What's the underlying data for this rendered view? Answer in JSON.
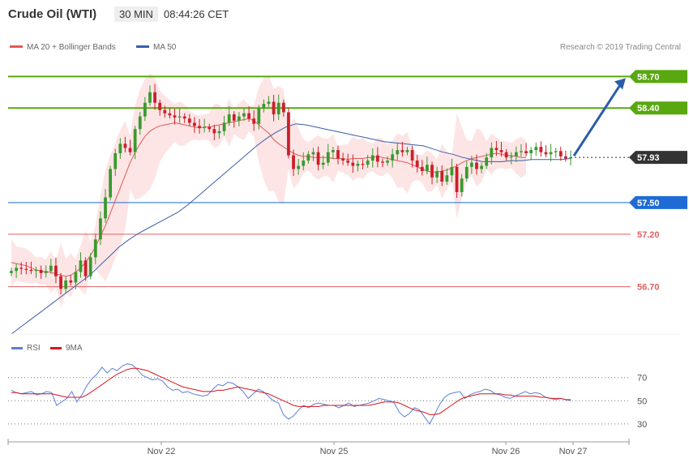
{
  "header": {
    "title": "Crude Oil (WTI)",
    "timeframe": "30 MIN",
    "time": "08:44:26 CET"
  },
  "legend": {
    "ma_bb": "MA 20 + Bollinger Bands",
    "ma50": "MA 50",
    "credit": "Research © 2019 Trading Central"
  },
  "colors": {
    "up": "#3a9a2e",
    "down": "#cc1f2b",
    "ma20": "#e35a5a",
    "bb_fill": "#fde1e1",
    "ma50": "#3a5ea8",
    "green": "#59a80f",
    "blue": "#1e6bd6",
    "red": "#e06060"
  },
  "chart_data": {
    "type": "candlestick",
    "ylim": [
      56.25,
      59.15
    ],
    "levels": [
      {
        "value": 58.7,
        "label": "58.70",
        "kind": "resistance"
      },
      {
        "value": 58.4,
        "label": "58.40",
        "kind": "resistance"
      },
      {
        "value": 57.93,
        "label": "57.93",
        "kind": "current"
      },
      {
        "value": 57.5,
        "label": "57.50",
        "kind": "pivot"
      },
      {
        "value": 57.2,
        "label": "57.20",
        "kind": "support"
      },
      {
        "value": 56.7,
        "label": "56.70",
        "kind": "support"
      }
    ],
    "x_labels": [
      "Nov 22",
      "Nov 25",
      "Nov 26",
      "Nov 27"
    ],
    "close": [
      56.85,
      56.88,
      56.87,
      56.86,
      56.85,
      56.86,
      56.83,
      56.85,
      56.9,
      56.8,
      56.68,
      56.76,
      56.74,
      56.84,
      56.95,
      56.8,
      56.98,
      57.15,
      57.35,
      57.55,
      57.82,
      57.97,
      58.06,
      58.02,
      57.98,
      58.2,
      58.32,
      58.45,
      58.55,
      58.45,
      58.38,
      58.35,
      58.33,
      58.31,
      58.32,
      58.3,
      58.26,
      58.23,
      58.21,
      58.22,
      58.2,
      58.16,
      58.18,
      58.26,
      58.34,
      58.28,
      58.32,
      58.35,
      58.3,
      58.25,
      58.4,
      58.44,
      58.46,
      58.34,
      58.45,
      58.36,
      57.95,
      57.82,
      57.85,
      57.9,
      57.96,
      57.98,
      57.86,
      57.88,
      57.98,
      58.0,
      57.92,
      57.9,
      57.88,
      57.85,
      57.87,
      57.86,
      57.9,
      57.95,
      57.89,
      57.88,
      57.9,
      57.96,
      58.0,
      57.98,
      58.0,
      57.9,
      57.84,
      57.8,
      57.86,
      57.74,
      57.8,
      57.7,
      57.76,
      57.84,
      57.6,
      57.73,
      57.84,
      57.88,
      57.82,
      57.85,
      57.93,
      58.02,
      58.0,
      57.98,
      57.93,
      57.94,
      57.98,
      57.99,
      57.97,
      58.0,
      58.03,
      57.98,
      57.96,
      57.98,
      57.99,
      57.94,
      57.92,
      57.93
    ],
    "ma20": [
      56.93,
      56.92,
      56.91,
      56.9,
      56.88,
      56.86,
      56.85,
      56.84,
      56.84,
      56.82,
      56.81,
      56.8,
      56.81,
      56.84,
      56.88,
      56.93,
      57.0,
      57.08,
      57.18,
      57.28,
      57.4,
      57.52,
      57.64,
      57.76,
      57.88,
      57.98,
      58.06,
      58.13,
      58.18,
      58.21,
      58.23,
      58.24,
      58.25,
      58.26,
      58.25,
      58.24,
      58.23,
      58.22,
      58.21,
      58.22,
      58.22,
      58.23,
      58.24,
      58.25,
      58.26,
      58.27,
      58.28,
      58.29,
      58.3,
      58.28,
      58.24,
      58.2,
      58.16,
      58.1,
      58.06,
      58.03,
      58.0,
      57.97,
      57.95,
      57.94,
      57.94,
      57.93,
      57.93,
      57.93,
      57.93,
      57.92,
      57.92,
      57.92,
      57.91,
      57.92,
      57.92,
      57.92,
      57.93,
      57.93,
      57.94,
      57.93,
      57.92,
      57.91,
      57.9,
      57.89,
      57.88,
      57.86,
      57.84,
      57.82,
      57.8,
      57.79,
      57.79,
      57.8,
      57.81,
      57.83,
      57.85,
      57.88,
      57.9,
      57.92,
      57.93,
      57.94,
      57.95,
      57.96,
      57.97,
      57.96,
      57.95,
      57.95,
      57.94,
      57.93,
      57.93
    ],
    "ma50": [
      56.25,
      56.32,
      56.39,
      56.46,
      56.53,
      56.6,
      56.67,
      56.74,
      56.81,
      56.9,
      56.99,
      57.08,
      57.15,
      57.21,
      57.26,
      57.31,
      57.36,
      57.41,
      57.48,
      57.56,
      57.64,
      57.72,
      57.8,
      57.88,
      57.96,
      58.04,
      58.11,
      58.17,
      58.22,
      58.25,
      58.24,
      58.22,
      58.2,
      58.18,
      58.16,
      58.14,
      58.12,
      58.1,
      58.08,
      58.07,
      58.06,
      58.05,
      58.04,
      58.01,
      57.98,
      57.96,
      57.93,
      57.91,
      57.89,
      57.89,
      57.89,
      57.9,
      57.9,
      57.91,
      57.91,
      57.91,
      57.91,
      57.92
    ],
    "rsi_ylim": [
      18,
      88
    ],
    "rsi_ticks": [
      70,
      50,
      30
    ],
    "rsi": [
      59,
      57,
      56,
      57,
      58,
      55,
      56,
      58,
      57,
      46,
      49,
      52,
      58,
      49,
      55,
      63,
      69,
      73,
      79,
      74,
      78,
      76,
      80,
      82,
      81,
      77,
      72,
      70,
      68,
      69,
      67,
      62,
      59,
      60,
      57,
      58,
      56,
      55,
      54,
      55,
      60,
      64,
      63,
      66,
      65,
      62,
      58,
      52,
      56,
      60,
      58,
      54,
      50,
      48,
      38,
      34,
      37,
      42,
      46,
      44,
      47,
      48,
      47,
      46,
      46,
      44,
      46,
      48,
      45,
      46,
      47,
      48,
      50,
      52,
      51,
      50,
      48,
      40,
      36,
      39,
      44,
      42,
      36,
      30,
      38,
      47,
      53,
      56,
      57,
      58,
      52,
      55,
      57,
      58,
      60,
      59,
      56,
      55,
      53,
      52,
      54,
      56,
      58,
      56,
      57,
      56,
      53,
      52,
      51,
      52,
      51,
      50
    ],
    "rsi_ma": [
      57,
      57,
      56,
      56,
      56,
      56,
      56,
      56,
      56,
      55,
      54,
      53,
      53,
      53,
      53,
      55,
      58,
      61,
      64,
      67,
      70,
      73,
      75,
      77,
      78,
      78,
      77,
      76,
      74,
      72,
      70,
      68,
      66,
      64,
      62,
      61,
      60,
      59,
      58,
      58,
      58,
      59,
      59,
      60,
      61,
      62,
      61,
      60,
      59,
      58,
      57,
      56,
      54,
      52,
      50,
      48,
      46,
      45,
      45,
      45,
      45,
      45,
      46,
      46,
      46,
      46,
      46,
      46,
      46,
      46,
      46,
      46,
      47,
      48,
      49,
      49,
      49,
      48,
      46,
      44,
      42,
      41,
      40,
      38,
      38,
      39,
      42,
      45,
      48,
      51,
      53,
      54,
      55,
      56,
      56,
      56,
      56,
      56,
      55,
      55,
      54,
      54,
      54,
      54,
      54,
      53,
      53,
      52,
      52,
      52,
      51,
      51
    ]
  }
}
